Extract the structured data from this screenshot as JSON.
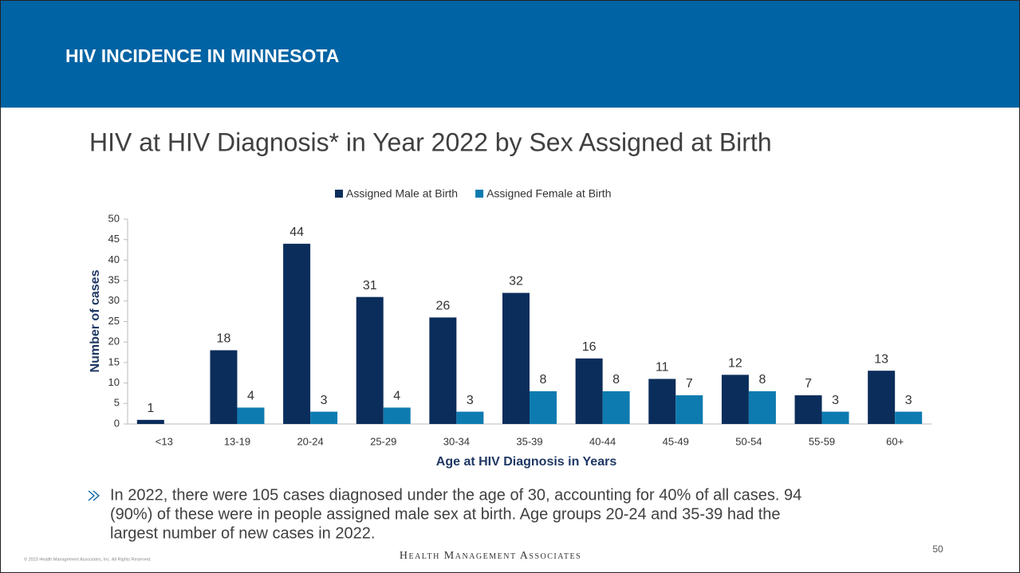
{
  "header": {
    "title": "HIV INCIDENCE IN MINNESOTA"
  },
  "chart_data": {
    "type": "bar",
    "title": "HIV at HIV Diagnosis* in Year 2022 by Sex Assigned at Birth",
    "x_label": "Age at HIV Diagnosis in Years",
    "y_label": "Number of cases",
    "categories": [
      "<13",
      "13-19",
      "20-24",
      "25-29",
      "30-34",
      "35-39",
      "40-44",
      "45-49",
      "50-54",
      "55-59",
      "60+"
    ],
    "series": [
      {
        "name": "Assigned Male at Birth",
        "color": "#0b2d5b",
        "values": [
          1,
          18,
          44,
          31,
          26,
          32,
          16,
          11,
          12,
          7,
          13
        ]
      },
      {
        "name": "Assigned Female at Birth",
        "color": "#0e7bb0",
        "values": [
          null,
          4,
          3,
          4,
          3,
          8,
          8,
          7,
          8,
          3,
          3
        ]
      }
    ],
    "ylim": [
      0,
      50
    ],
    "yticks": [
      0,
      5,
      10,
      15,
      20,
      25,
      30,
      35,
      40,
      45,
      50
    ],
    "legend": "top",
    "grid": false
  },
  "bullet": {
    "lines": [
      "In 2022, there were 105 cases diagnosed under the age of 30, accounting for 40% of all cases. 94",
      "(90%) of these were in people assigned male sex at birth. Age groups 20-24 and 35-39 had the",
      "largest number of new cases in 2022."
    ]
  },
  "footer": {
    "copyright": "© 2023 Health Management Associates, Inc. All Rights Reserved.",
    "brand": "Health Management Associates",
    "page": "50"
  }
}
